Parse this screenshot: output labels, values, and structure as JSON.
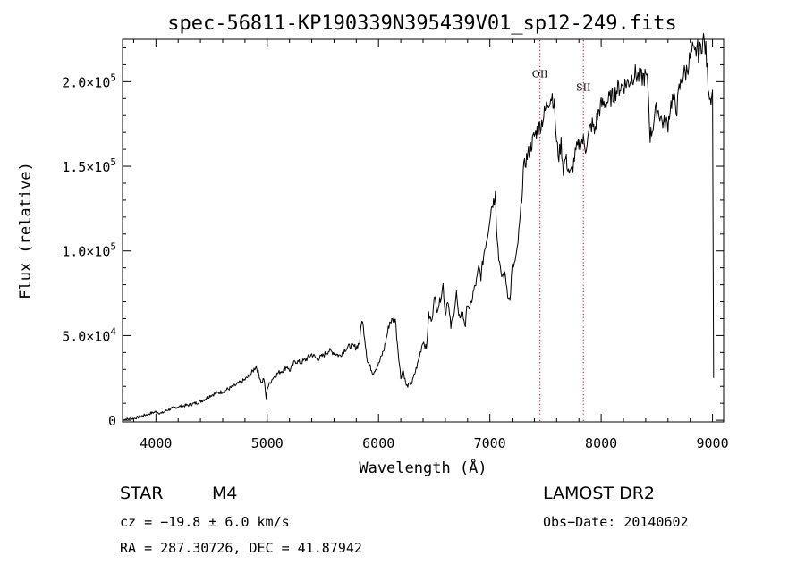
{
  "chart_data": {
    "type": "line",
    "title": "spec-56811-KP190339N395439V01_sp12-249.fits",
    "xlabel": "Wavelength (Å)",
    "ylabel": "Flux (relative)",
    "xlim": [
      3700,
      9100
    ],
    "ylim": [
      -1000,
      225000
    ],
    "x_ticks": [
      {
        "value": 4000,
        "label": "4000"
      },
      {
        "value": 5000,
        "label": "5000"
      },
      {
        "value": 6000,
        "label": "6000"
      },
      {
        "value": 7000,
        "label": "7000"
      },
      {
        "value": 8000,
        "label": "8000"
      },
      {
        "value": 9000,
        "label": "9000"
      }
    ],
    "y_ticks": [
      {
        "value": 0,
        "mantissa": "0",
        "exponent": ""
      },
      {
        "value": 50000,
        "mantissa": "5.0×10",
        "exponent": "4"
      },
      {
        "value": 100000,
        "mantissa": "1.0×10",
        "exponent": "5"
      },
      {
        "value": 150000,
        "mantissa": "1.5×10",
        "exponent": "5"
      },
      {
        "value": 200000,
        "mantissa": "2.0×10",
        "exponent": "5"
      }
    ],
    "line_markers": [
      {
        "name": "OII",
        "wavelength": 7450,
        "color": "#cc0000"
      },
      {
        "name": "SII",
        "wavelength": 7840,
        "color": "#cc0000"
      }
    ],
    "series": [
      {
        "color": "#000000",
        "x": [
          3700,
          3800,
          3900,
          4000,
          4050,
          4100,
          4200,
          4300,
          4400,
          4500,
          4600,
          4700,
          4750,
          4800,
          4850,
          4900,
          4950,
          4970,
          4990,
          5000,
          5050,
          5100,
          5150,
          5180,
          5200,
          5250,
          5300,
          5350,
          5400,
          5450,
          5500,
          5550,
          5600,
          5650,
          5700,
          5750,
          5800,
          5830,
          5850,
          5870,
          5900,
          5950,
          6000,
          6050,
          6100,
          6150,
          6170,
          6200,
          6220,
          6250,
          6300,
          6350,
          6400,
          6430,
          6450,
          6480,
          6500,
          6520,
          6550,
          6580,
          6600,
          6620,
          6650,
          6680,
          6700,
          6720,
          6750,
          6780,
          6800,
          6820,
          6850,
          6880,
          6900,
          6920,
          6950,
          6980,
          7000,
          7020,
          7040,
          7050,
          7060,
          7080,
          7100,
          7120,
          7140,
          7160,
          7180,
          7200,
          7220,
          7240,
          7260,
          7280,
          7300,
          7330,
          7360,
          7400,
          7430,
          7460,
          7490,
          7520,
          7540,
          7560,
          7580,
          7600,
          7620,
          7640,
          7660,
          7680,
          7700,
          7720,
          7740,
          7760,
          7780,
          7800,
          7820,
          7840,
          7860,
          7880,
          7900,
          7920,
          7940,
          7960,
          7980,
          8000,
          8050,
          8100,
          8150,
          8200,
          8250,
          8300,
          8350,
          8400,
          8420,
          8440,
          8460,
          8480,
          8500,
          8520,
          8540,
          8560,
          8580,
          8600,
          8620,
          8640,
          8660,
          8680,
          8700,
          8720,
          8740,
          8760,
          8780,
          8800,
          8820,
          8840,
          8860,
          8880,
          8900,
          8920,
          8940,
          8960,
          8980,
          9000,
          9010
        ],
        "y": [
          500,
          1000,
          3000,
          5000,
          4000,
          6000,
          8000,
          9000,
          11000,
          15000,
          17000,
          20000,
          22000,
          24000,
          27000,
          32000,
          22000,
          25000,
          13000,
          19000,
          25000,
          28000,
          30000,
          32000,
          29000,
          35000,
          34000,
          36000,
          39000,
          36000,
          38000,
          41000,
          40000,
          38000,
          42000,
          44000,
          43000,
          46000,
          60000,
          52000,
          35000,
          28000,
          33000,
          42000,
          58000,
          60000,
          45000,
          25000,
          30000,
          20000,
          22000,
          33000,
          47000,
          42000,
          62000,
          58000,
          75000,
          65000,
          70000,
          80000,
          62000,
          72000,
          55000,
          65000,
          75000,
          60000,
          64000,
          56000,
          70000,
          65000,
          75000,
          82000,
          90000,
          85000,
          100000,
          110000,
          120000,
          128000,
          130000,
          138000,
          112000,
          97000,
          85000,
          86000,
          85000,
          75000,
          70000,
          90000,
          92000,
          97000,
          110000,
          125000,
          147000,
          155000,
          160000,
          168000,
          172000,
          175000,
          181000,
          188000,
          190000,
          192000,
          185000,
          163000,
          156000,
          164000,
          148000,
          155000,
          150000,
          145000,
          148000,
          155000,
          160000,
          163000,
          165000,
          165000,
          161000,
          166000,
          172000,
          175000,
          170000,
          178000,
          183000,
          186000,
          188000,
          191000,
          196000,
          198000,
          200000,
          205000,
          202000,
          203000,
          198000,
          168000,
          172000,
          180000,
          184000,
          182000,
          178000,
          175000,
          176000,
          175000,
          185000,
          190000,
          188000,
          184000,
          195000,
          200000,
          205000,
          205000,
          210000,
          214000,
          218000,
          215000,
          220000,
          216000,
          222000,
          225000,
          218000,
          200000,
          190000,
          195000,
          25000
        ]
      }
    ]
  },
  "info": {
    "object_class": "STAR",
    "subclass": "M4",
    "cz": "cz = −19.8 ± 6.0 km/s",
    "coords": "RA = 287.30726, DEC =  41.87942",
    "survey": "LAMOST DR2",
    "obs_date": "Obs−Date: 20140602"
  }
}
